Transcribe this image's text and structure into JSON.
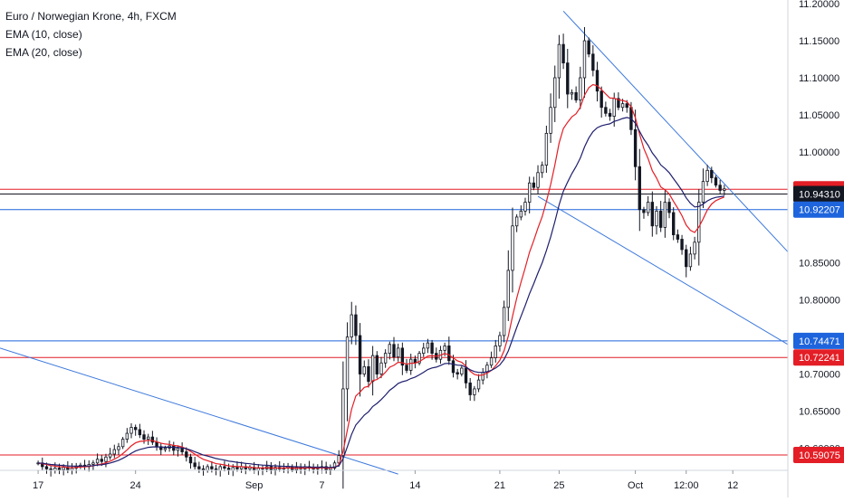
{
  "legend": {
    "title": "Euro / Norwegian Krone, 4h, FXCM",
    "ema10": "EMA (10, close)",
    "ema20": "EMA (20, close)"
  },
  "chart_data": {
    "type": "candlestick",
    "title": "Euro / Norwegian Krone, 4h, FXCM",
    "indicators": [
      {
        "name": "EMA (10, close)",
        "color": "#e41e26"
      },
      {
        "name": "EMA (20, close)",
        "color": "#1e1e6e"
      }
    ],
    "ylim": [
      10.57,
      11.205
    ],
    "y_ticks": [
      11.2,
      11.15,
      11.1,
      11.05,
      11.0,
      10.85,
      10.8,
      10.7,
      10.65,
      10.6
    ],
    "y_tick_labels": [
      "11.20000",
      "11.15000",
      "11.10000",
      "11.05000",
      "11.00000",
      "10.85000",
      "10.80000",
      "10.70000",
      "10.65000",
      "10.60000"
    ],
    "x_ticks": [
      {
        "label": "17",
        "bar": 0
      },
      {
        "label": "24",
        "bar": 23
      },
      {
        "label": "Sep",
        "bar": 51
      },
      {
        "label": "7",
        "bar": 67
      },
      {
        "label": "14",
        "bar": 89
      },
      {
        "label": "21",
        "bar": 109
      },
      {
        "label": "25",
        "bar": 123
      },
      {
        "label": "Oct",
        "bar": 141
      },
      {
        "label": "12:00",
        "bar": 153
      },
      {
        "label": "12",
        "bar": 164
      }
    ],
    "x_range_bars": [
      -9,
      177
    ],
    "horizontal_levels": [
      {
        "value": 10.94951,
        "label": "10.94951",
        "color": "#e41e26"
      },
      {
        "value": 10.9431,
        "label": "10.94310",
        "color": "#131722"
      },
      {
        "value": 10.92207,
        "label": "10.92207",
        "color": "#1e64dc"
      },
      {
        "value": 10.74471,
        "label": "10.74471",
        "color": "#1e64dc"
      },
      {
        "value": 10.72241,
        "label": "10.72241",
        "color": "#e41e26"
      },
      {
        "value": 10.59075,
        "label": "10.59075",
        "color": "#e41e26"
      }
    ],
    "trendlines": [
      {
        "color": "#3c78dc",
        "from": [
          -9,
          10.735
        ],
        "to": [
          85,
          10.565
        ]
      },
      {
        "color": "#3c78dc",
        "from": [
          124,
          11.19
        ],
        "to": [
          177,
          10.865
        ]
      },
      {
        "color": "#3c78dc",
        "from": [
          118,
          10.94
        ],
        "to": [
          177,
          10.74
        ]
      }
    ],
    "series_close": [
      10.58,
      10.575,
      10.572,
      10.57,
      10.573,
      10.571,
      10.574,
      10.57,
      10.573,
      10.575,
      10.577,
      10.575,
      10.578,
      10.58,
      10.585,
      10.582,
      10.588,
      10.592,
      10.598,
      10.602,
      10.612,
      10.62,
      10.628,
      10.625,
      10.618,
      10.612,
      10.615,
      10.608,
      10.602,
      10.598,
      10.6,
      10.603,
      10.597,
      10.6,
      10.595,
      10.588,
      10.58,
      10.575,
      10.572,
      10.57,
      10.575,
      10.572,
      10.57,
      10.575,
      10.573,
      10.57,
      10.574,
      10.572,
      10.575,
      10.572,
      10.574,
      10.57,
      10.573,
      10.572,
      10.575,
      10.571,
      10.574,
      10.572,
      10.573,
      10.575,
      10.571,
      10.574,
      10.572,
      10.575,
      10.573,
      10.572,
      10.574,
      10.575,
      10.571,
      10.573,
      10.58,
      10.59,
      10.68,
      10.75,
      10.78,
      10.752,
      10.7,
      10.71,
      10.69,
      10.725,
      10.7,
      10.715,
      10.728,
      10.74,
      10.723,
      10.735,
      10.712,
      10.705,
      10.72,
      10.715,
      10.728,
      10.735,
      10.742,
      10.728,
      10.72,
      10.732,
      10.738,
      10.718,
      10.702,
      10.7,
      10.708,
      10.688,
      10.672,
      10.68,
      10.692,
      10.702,
      10.712,
      10.722,
      10.738,
      10.752,
      10.79,
      10.84,
      10.9,
      10.912,
      10.92,
      10.932,
      10.958,
      10.952,
      10.972,
      10.982,
      11.025,
      11.06,
      11.1,
      11.145,
      11.12,
      11.078,
      11.08,
      11.07,
      11.1,
      11.15,
      11.132,
      11.11,
      11.082,
      11.06,
      11.052,
      11.048,
      11.072,
      11.06,
      11.065,
      11.06,
      11.03,
      10.98,
      10.922,
      10.918,
      10.932,
      10.9,
      10.92,
      10.898,
      10.932,
      10.918,
      10.888,
      10.882,
      10.868,
      10.845,
      10.862,
      10.878,
      10.932,
      10.96,
      10.975,
      10.965,
      10.955,
      10.948,
      10.95
    ]
  },
  "price_axis": {
    "badges": [
      "10.94951",
      "10.94310",
      "10.92207",
      "10.74471",
      "10.72241",
      "10.59075"
    ]
  }
}
